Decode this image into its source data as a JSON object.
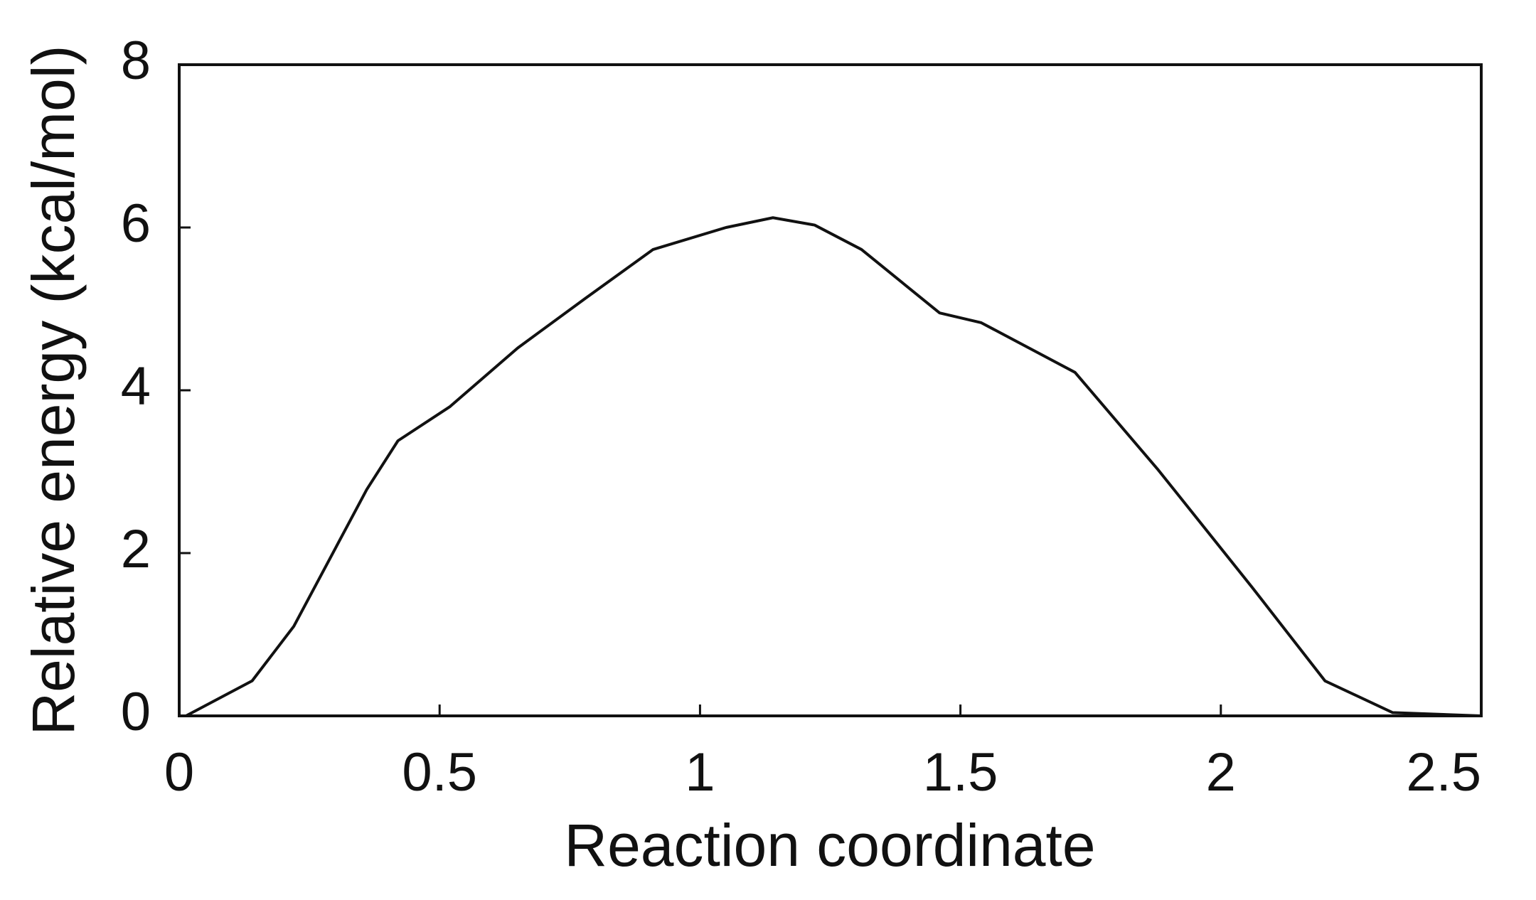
{
  "chart_data": {
    "type": "line",
    "xlabel": "Reaction coordinate",
    "ylabel": "Relative energy (kcal/mol)",
    "x": [
      0.013,
      0.14,
      0.22,
      0.3,
      0.36,
      0.42,
      0.52,
      0.65,
      0.78,
      0.91,
      1.05,
      1.14,
      1.22,
      1.31,
      1.46,
      1.54,
      1.72,
      1.88,
      2.06,
      2.2,
      2.33,
      2.5
    ],
    "values": [
      0,
      0.43,
      1.1,
      2.06,
      2.78,
      3.38,
      3.8,
      4.52,
      5.13,
      5.73,
      6.0,
      6.12,
      6.03,
      5.73,
      4.95,
      4.83,
      4.22,
      3.02,
      1.58,
      0.43,
      0.04,
      0
    ],
    "color": "#111111",
    "xlim": [
      0,
      2.5
    ],
    "xticks": [
      0,
      0.5,
      1,
      1.5,
      2,
      2.5
    ],
    "ylim": [
      0,
      8
    ],
    "yticks": [
      0,
      2,
      4,
      6,
      8
    ],
    "grid": false
  }
}
